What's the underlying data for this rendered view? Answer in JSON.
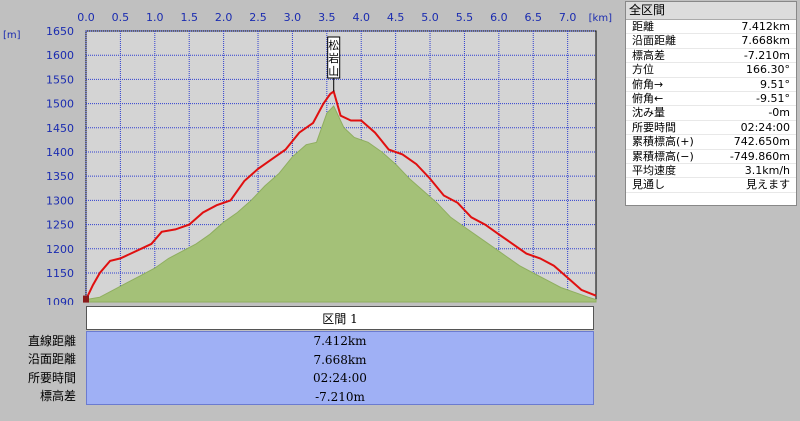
{
  "chart_data": {
    "type": "area",
    "xlabel": "[km]",
    "ylabel": "[m]",
    "xlim": [
      0,
      7.412
    ],
    "ylim": [
      1090,
      1650
    ],
    "x_ticks": [
      "0.0",
      "0.5",
      "1.0",
      "1.5",
      "2.0",
      "2.5",
      "3.0",
      "3.5",
      "4.0",
      "4.5",
      "5.0",
      "5.5",
      "6.0",
      "6.5",
      "7.0"
    ],
    "x_tick_values": [
      0,
      0.5,
      1.0,
      1.5,
      2.0,
      2.5,
      3.0,
      3.5,
      4.0,
      4.5,
      5.0,
      5.5,
      6.0,
      6.5,
      7.0
    ],
    "y_ticks": [
      "1650",
      "1600",
      "1550",
      "1500",
      "1450",
      "1400",
      "1350",
      "1300",
      "1250",
      "1200",
      "1150",
      "1090"
    ],
    "y_tick_values": [
      1650,
      1600,
      1550,
      1500,
      1450,
      1400,
      1350,
      1300,
      1250,
      1200,
      1150,
      1090
    ],
    "grid": true,
    "annotation": {
      "text": "松岩山",
      "x": 3.6,
      "y": 1525
    },
    "series": [
      {
        "color": "#e01010",
        "x": [
          0.0,
          0.1,
          0.2,
          0.35,
          0.5,
          0.65,
          0.8,
          0.95,
          1.1,
          1.3,
          1.5,
          1.7,
          1.9,
          2.1,
          2.3,
          2.5,
          2.7,
          2.9,
          3.1,
          3.3,
          3.45,
          3.55,
          3.6,
          3.7,
          3.85,
          4.0,
          4.2,
          4.4,
          4.6,
          4.8,
          5.0,
          5.2,
          5.4,
          5.6,
          5.8,
          6.0,
          6.2,
          6.4,
          6.6,
          6.8,
          7.0,
          7.2,
          7.412
        ],
        "values": [
          1095,
          1125,
          1150,
          1175,
          1180,
          1190,
          1200,
          1210,
          1235,
          1240,
          1250,
          1275,
          1290,
          1300,
          1340,
          1365,
          1385,
          1405,
          1440,
          1460,
          1500,
          1520,
          1525,
          1475,
          1465,
          1465,
          1440,
          1405,
          1395,
          1375,
          1345,
          1310,
          1295,
          1265,
          1250,
          1230,
          1210,
          1190,
          1180,
          1165,
          1140,
          1115,
          1103
        ]
      },
      {
        "color": "#a4c178",
        "x": [
          0.0,
          0.2,
          0.4,
          0.6,
          0.8,
          1.0,
          1.2,
          1.4,
          1.6,
          1.8,
          2.0,
          2.2,
          2.4,
          2.6,
          2.8,
          3.0,
          3.2,
          3.35,
          3.5,
          3.6,
          3.75,
          3.9,
          4.1,
          4.3,
          4.5,
          4.7,
          4.9,
          5.1,
          5.3,
          5.5,
          5.7,
          5.9,
          6.1,
          6.3,
          6.5,
          6.7,
          6.9,
          7.1,
          7.3,
          7.412
        ],
        "values": [
          1095,
          1100,
          1115,
          1130,
          1145,
          1160,
          1180,
          1195,
          1210,
          1230,
          1255,
          1275,
          1300,
          1330,
          1355,
          1390,
          1415,
          1420,
          1480,
          1495,
          1450,
          1430,
          1420,
          1400,
          1375,
          1345,
          1320,
          1295,
          1265,
          1245,
          1225,
          1205,
          1185,
          1165,
          1150,
          1135,
          1120,
          1110,
          1100,
          1095
        ]
      }
    ]
  },
  "segment": {
    "header": "区間 1",
    "labels": [
      "直線距離",
      "沿面距離",
      "所要時間",
      "標高差"
    ],
    "values": [
      "7.412km",
      "7.668km",
      "02:24:00",
      "-7.210m"
    ]
  },
  "stats": {
    "title": "全区間",
    "rows": [
      {
        "label": "距離",
        "value": "7.412km"
      },
      {
        "label": "沿面距離",
        "value": "7.668km"
      },
      {
        "label": "標高差",
        "value": "-7.210m"
      },
      {
        "label": "方位",
        "value": "166.30°"
      },
      {
        "label": "俯角→",
        "value": "9.51°"
      },
      {
        "label": "俯角←",
        "value": "-9.51°"
      },
      {
        "label": "沈み量",
        "value": "-0m"
      },
      {
        "label": "所要時間",
        "value": "02:24:00"
      },
      {
        "label": "累積標高(+)",
        "value": "742.650m"
      },
      {
        "label": "累積標高(−)",
        "value": "-749.860m"
      },
      {
        "label": "平均速度",
        "value": "3.1km/h"
      },
      {
        "label": "見通し",
        "value": "見えます"
      }
    ]
  }
}
